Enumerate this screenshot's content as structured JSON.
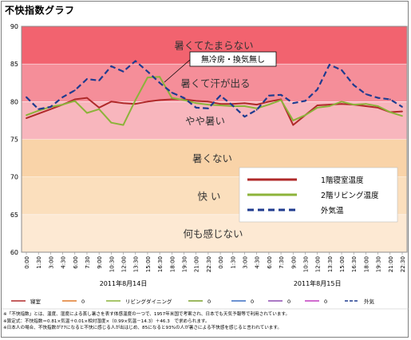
{
  "title": "不快指数グラフ",
  "chart_data": {
    "type": "line",
    "ylim": [
      60,
      90
    ],
    "yticks": [
      60,
      65,
      70,
      75,
      80,
      85,
      90
    ],
    "x": [
      "0:00",
      "1:30",
      "3:00",
      "4:30",
      "6:00",
      "7:30",
      "9:00",
      "10:30",
      "12:00",
      "13:30",
      "15:00",
      "16:30",
      "18:00",
      "19:30",
      "21:00",
      "22:30",
      "0:00",
      "1:30",
      "3:00",
      "4:30",
      "6:00",
      "7:30",
      "9:00",
      "10:30",
      "12:00",
      "13:30",
      "15:00",
      "16:30",
      "18:00",
      "19:30",
      "21:00",
      "22:30"
    ],
    "date_labels": [
      {
        "label": "2011年8月14日",
        "at": 8
      },
      {
        "label": "2011年8月15日",
        "at": 24
      }
    ],
    "bands": [
      {
        "from": 85,
        "to": 90,
        "label": "暑くてたまらない",
        "color": "#f2636f"
      },
      {
        "from": 80,
        "to": 85,
        "label": "暑くて汗が出る",
        "color": "#f58e99"
      },
      {
        "from": 75,
        "to": 80,
        "label": "やや暑い",
        "color": "#f8b6bd"
      },
      {
        "from": 70,
        "to": 75,
        "label": "暑くない",
        "color": "#f9d3a8"
      },
      {
        "from": 65,
        "to": 70,
        "label": "快 い",
        "color": "#fbdfbd"
      },
      {
        "from": 60,
        "to": 65,
        "label": "何も感じない",
        "color": "#fde9d3"
      }
    ],
    "series": [
      {
        "name": "1階寝室温度",
        "color": "#b02a2a",
        "dash": false,
        "values": [
          77.8,
          78.4,
          79.0,
          79.6,
          80.3,
          80.5,
          79.2,
          80.0,
          79.8,
          79.7,
          80.0,
          80.2,
          80.3,
          80.3,
          80.1,
          80.0,
          79.7,
          79.7,
          79.8,
          79.6,
          80.0,
          80.3,
          76.9,
          78.2,
          79.5,
          79.6,
          79.7,
          79.6,
          79.4,
          79.2,
          78.6,
          78.7
        ]
      },
      {
        "name": "2階リビング温度",
        "color": "#8cb33a",
        "dash": false,
        "values": [
          78.2,
          78.8,
          79.3,
          79.6,
          80.1,
          78.5,
          79.0,
          77.2,
          76.9,
          80.2,
          83.2,
          83.3,
          80.5,
          80.2,
          79.8,
          79.6,
          79.5,
          79.4,
          79.4,
          79.1,
          79.6,
          80.2,
          77.5,
          78.2,
          79.2,
          79.4,
          80.0,
          79.6,
          79.7,
          79.4,
          78.6,
          78.1
        ]
      },
      {
        "name": "外気温",
        "color": "#1f3b8f",
        "dash": true,
        "values": [
          80.6,
          79.0,
          79.3,
          80.6,
          81.5,
          83.0,
          82.8,
          84.7,
          84.0,
          85.4,
          84.0,
          82.5,
          81.2,
          80.5,
          79.2,
          79.1,
          80.8,
          79.5,
          78.0,
          78.9,
          80.8,
          80.9,
          79.8,
          80.1,
          81.6,
          84.9,
          84.2,
          82.2,
          81.0,
          80.5,
          80.3,
          79.3
        ]
      }
    ],
    "legend": {
      "position": "right-middle",
      "items": [
        "1階寝室温度",
        "2階リビング温度",
        "外気温"
      ]
    },
    "annotation": "無冷房・換気無し",
    "bottom_legend": [
      "寝室",
      "0",
      "リビングダイニング",
      "0",
      "0",
      "0",
      "0",
      "外気"
    ]
  },
  "notes": [
    "※「不快指数」とは、温度、湿度による蒸し暑さを表す体感温度の一つで、1957年米国で考案され、日本でも天気予報等で利用されています。",
    "※算定式：不快指数＝0.81×気温＋0.01×相対湿度×（0.99×気温－14.3）＋46.3　で求められます。",
    "※日本人の場合、不快指数が77になると不快に感じる人が出はじめ、85になると93%の人が暑さによる不快感を感じると言われています。"
  ]
}
